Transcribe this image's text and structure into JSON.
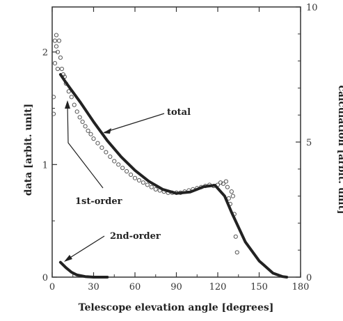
{
  "chart_data": {
    "type": "scatter",
    "xlabel": "Telescope elevation angle [degrees]",
    "ylabel_left": "data    [arbit. unit]",
    "ylabel_right": "calculation    [arbit. unit]",
    "xlim": [
      0,
      180
    ],
    "ylim_left": [
      0,
      2.4
    ],
    "ylim_right": [
      0,
      10
    ],
    "x_ticks": [
      0,
      30,
      60,
      90,
      120,
      150,
      180
    ],
    "y_left_ticks": [
      0,
      1,
      2
    ],
    "y_right_ticks": [
      0,
      5,
      10
    ],
    "grid": false,
    "series": [
      {
        "axis": "left",
        "marker": "open-circle",
        "points": [
          [
            1,
            1.45
          ],
          [
            1,
            1.6
          ],
          [
            2,
            2.1
          ],
          [
            2,
            1.9
          ],
          [
            3,
            2.15
          ],
          [
            3,
            2.05
          ],
          [
            4,
            2.0
          ],
          [
            4,
            1.85
          ],
          [
            5,
            2.1
          ],
          [
            6,
            1.95
          ],
          [
            7,
            1.85
          ],
          [
            8,
            1.8
          ],
          [
            9,
            1.78
          ],
          [
            10,
            1.72
          ],
          [
            12,
            1.65
          ],
          [
            14,
            1.6
          ],
          [
            16,
            1.53
          ],
          [
            18,
            1.47
          ],
          [
            20,
            1.42
          ],
          [
            22,
            1.38
          ],
          [
            24,
            1.34
          ],
          [
            26,
            1.3
          ],
          [
            28,
            1.27
          ],
          [
            30,
            1.23
          ],
          [
            33,
            1.19
          ],
          [
            36,
            1.15
          ],
          [
            39,
            1.11
          ],
          [
            42,
            1.07
          ],
          [
            45,
            1.03
          ],
          [
            48,
            1.0
          ],
          [
            51,
            0.97
          ],
          [
            54,
            0.94
          ],
          [
            57,
            0.91
          ],
          [
            60,
            0.88
          ],
          [
            63,
            0.86
          ],
          [
            66,
            0.84
          ],
          [
            69,
            0.82
          ],
          [
            72,
            0.8
          ],
          [
            75,
            0.78
          ],
          [
            78,
            0.77
          ],
          [
            81,
            0.76
          ],
          [
            84,
            0.75
          ],
          [
            87,
            0.75
          ],
          [
            90,
            0.75
          ],
          [
            93,
            0.75
          ],
          [
            96,
            0.76
          ],
          [
            99,
            0.77
          ],
          [
            102,
            0.78
          ],
          [
            105,
            0.79
          ],
          [
            108,
            0.8
          ],
          [
            111,
            0.81
          ],
          [
            114,
            0.82
          ],
          [
            117,
            0.81
          ],
          [
            120,
            0.82
          ],
          [
            122,
            0.84
          ],
          [
            124,
            0.83
          ],
          [
            126,
            0.85
          ],
          [
            127,
            0.8
          ],
          [
            128,
            0.7
          ],
          [
            129,
            0.65
          ],
          [
            130,
            0.76
          ],
          [
            131,
            0.72
          ],
          [
            132,
            0.56
          ],
          [
            133,
            0.36
          ],
          [
            134,
            0.22
          ]
        ]
      },
      {
        "name": "total",
        "axis": "right",
        "style": "thick-line",
        "points": [
          [
            6,
            7.5
          ],
          [
            10,
            7.2
          ],
          [
            20,
            6.5
          ],
          [
            30,
            5.75
          ],
          [
            40,
            5.05
          ],
          [
            50,
            4.45
          ],
          [
            60,
            3.95
          ],
          [
            70,
            3.55
          ],
          [
            80,
            3.25
          ],
          [
            90,
            3.1
          ],
          [
            100,
            3.15
          ],
          [
            110,
            3.35
          ],
          [
            118,
            3.4
          ],
          [
            125,
            3.0
          ],
          [
            130,
            2.4
          ],
          [
            140,
            1.3
          ],
          [
            150,
            0.6
          ],
          [
            160,
            0.15
          ],
          [
            167,
            0.02
          ],
          [
            170,
            0.0
          ]
        ]
      },
      {
        "name": "2nd-order",
        "axis": "right",
        "style": "thick-line",
        "points": [
          [
            6,
            0.55
          ],
          [
            10,
            0.35
          ],
          [
            14,
            0.18
          ],
          [
            18,
            0.08
          ],
          [
            24,
            0.02
          ],
          [
            30,
            0.0
          ],
          [
            40,
            0.0
          ]
        ]
      }
    ],
    "annotations": [
      {
        "text": "total"
      },
      {
        "text": "1st-order"
      },
      {
        "text": "2nd-order"
      }
    ]
  }
}
